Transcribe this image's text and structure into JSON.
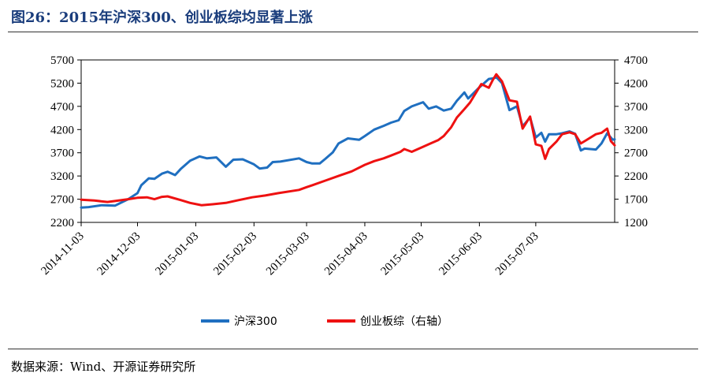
{
  "title": "图26：2015年沪深300、创业板综均显著上涨",
  "source": "数据来源：Wind、开源证券研究所",
  "chart_data": {
    "type": "line",
    "x_ticks": [
      "2014-11-03",
      "2014-12-03",
      "2015-01-03",
      "2015-02-03",
      "2015-03-03",
      "2015-04-03",
      "2015-05-03",
      "2015-06-03",
      "2015-07-03"
    ],
    "x_range": [
      "2014-11-03",
      "2015-08-14"
    ],
    "y_left": {
      "ticks": [
        "2200",
        "2700",
        "3200",
        "3700",
        "4200",
        "4700",
        "5200",
        "5700"
      ],
      "range": [
        2200,
        5700
      ]
    },
    "y_right": {
      "ticks": [
        "1200",
        "1700",
        "2200",
        "2700",
        "3200",
        "3700",
        "4200",
        "4700"
      ],
      "range": [
        1200,
        4700
      ]
    },
    "grid": false,
    "legend_position": "bottom",
    "series": [
      {
        "name": "沪深300",
        "axis": "left",
        "color": "#1f6fc0",
        "points": [
          [
            "2014-11-03",
            2520
          ],
          [
            "2014-11-07",
            2530
          ],
          [
            "2014-11-14",
            2570
          ],
          [
            "2014-11-21",
            2560
          ],
          [
            "2014-11-28",
            2700
          ],
          [
            "2014-12-03",
            2830
          ],
          [
            "2014-12-05",
            3000
          ],
          [
            "2014-12-09",
            3150
          ],
          [
            "2014-12-12",
            3140
          ],
          [
            "2014-12-16",
            3250
          ],
          [
            "2014-12-19",
            3290
          ],
          [
            "2014-12-23",
            3220
          ],
          [
            "2014-12-26",
            3350
          ],
          [
            "2014-12-31",
            3530
          ],
          [
            "2015-01-05",
            3620
          ],
          [
            "2015-01-09",
            3580
          ],
          [
            "2015-01-14",
            3600
          ],
          [
            "2015-01-19",
            3400
          ],
          [
            "2015-01-23",
            3550
          ],
          [
            "2015-01-28",
            3560
          ],
          [
            "2015-02-03",
            3450
          ],
          [
            "2015-02-06",
            3360
          ],
          [
            "2015-02-10",
            3380
          ],
          [
            "2015-02-13",
            3500
          ],
          [
            "2015-02-17",
            3510
          ],
          [
            "2015-02-27",
            3580
          ],
          [
            "2015-03-03",
            3500
          ],
          [
            "2015-03-06",
            3470
          ],
          [
            "2015-03-10",
            3470
          ],
          [
            "2015-03-13",
            3570
          ],
          [
            "2015-03-17",
            3710
          ],
          [
            "2015-03-20",
            3900
          ],
          [
            "2015-03-25",
            4010
          ],
          [
            "2015-03-31",
            3980
          ],
          [
            "2015-04-03",
            4060
          ],
          [
            "2015-04-08",
            4200
          ],
          [
            "2015-04-13",
            4280
          ],
          [
            "2015-04-17",
            4350
          ],
          [
            "2015-04-21",
            4400
          ],
          [
            "2015-04-24",
            4600
          ],
          [
            "2015-04-28",
            4700
          ],
          [
            "2015-05-04",
            4790
          ],
          [
            "2015-05-07",
            4650
          ],
          [
            "2015-05-11",
            4700
          ],
          [
            "2015-05-15",
            4610
          ],
          [
            "2015-05-19",
            4650
          ],
          [
            "2015-05-22",
            4820
          ],
          [
            "2015-05-26",
            5000
          ],
          [
            "2015-05-28",
            4870
          ],
          [
            "2015-06-03",
            5110
          ],
          [
            "2015-06-05",
            5180
          ],
          [
            "2015-06-08",
            5290
          ],
          [
            "2015-06-10",
            5300
          ],
          [
            "2015-06-12",
            5330
          ],
          [
            "2015-06-15",
            5200
          ],
          [
            "2015-06-19",
            4620
          ],
          [
            "2015-06-23",
            4700
          ],
          [
            "2015-06-26",
            4270
          ],
          [
            "2015-06-30",
            4460
          ],
          [
            "2015-07-03",
            4030
          ],
          [
            "2015-07-06",
            4130
          ],
          [
            "2015-07-08",
            3940
          ],
          [
            "2015-07-10",
            4100
          ],
          [
            "2015-07-14",
            4100
          ],
          [
            "2015-07-17",
            4120
          ],
          [
            "2015-07-21",
            4160
          ],
          [
            "2015-07-24",
            4110
          ],
          [
            "2015-07-27",
            3750
          ],
          [
            "2015-07-29",
            3790
          ],
          [
            "2015-08-04",
            3770
          ],
          [
            "2015-08-07",
            3900
          ],
          [
            "2015-08-10",
            4120
          ],
          [
            "2015-08-13",
            3980
          ],
          [
            "2015-08-14",
            3990
          ]
        ]
      },
      {
        "name": "创业板综（右轴）",
        "axis": "right",
        "color": "#ee1111",
        "points": [
          [
            "2014-11-03",
            1690
          ],
          [
            "2014-11-10",
            1670
          ],
          [
            "2014-11-17",
            1640
          ],
          [
            "2014-11-21",
            1660
          ],
          [
            "2014-11-28",
            1700
          ],
          [
            "2014-12-03",
            1730
          ],
          [
            "2014-12-08",
            1740
          ],
          [
            "2014-12-12",
            1700
          ],
          [
            "2014-12-16",
            1750
          ],
          [
            "2014-12-19",
            1760
          ],
          [
            "2014-12-26",
            1680
          ],
          [
            "2014-12-31",
            1620
          ],
          [
            "2015-01-06",
            1570
          ],
          [
            "2015-01-12",
            1590
          ],
          [
            "2015-01-19",
            1620
          ],
          [
            "2015-01-26",
            1680
          ],
          [
            "2015-02-02",
            1740
          ],
          [
            "2015-02-09",
            1780
          ],
          [
            "2015-02-16",
            1830
          ],
          [
            "2015-02-27",
            1900
          ],
          [
            "2015-03-03",
            1960
          ],
          [
            "2015-03-06",
            2000
          ],
          [
            "2015-03-13",
            2100
          ],
          [
            "2015-03-20",
            2200
          ],
          [
            "2015-03-27",
            2300
          ],
          [
            "2015-04-03",
            2440
          ],
          [
            "2015-04-08",
            2520
          ],
          [
            "2015-04-13",
            2580
          ],
          [
            "2015-04-17",
            2640
          ],
          [
            "2015-04-22",
            2720
          ],
          [
            "2015-04-24",
            2780
          ],
          [
            "2015-04-28",
            2720
          ],
          [
            "2015-05-04",
            2830
          ],
          [
            "2015-05-08",
            2900
          ],
          [
            "2015-05-12",
            2970
          ],
          [
            "2015-05-15",
            3060
          ],
          [
            "2015-05-19",
            3250
          ],
          [
            "2015-05-22",
            3460
          ],
          [
            "2015-05-26",
            3640
          ],
          [
            "2015-05-29",
            3780
          ],
          [
            "2015-06-02",
            4050
          ],
          [
            "2015-06-04",
            4180
          ],
          [
            "2015-06-08",
            4100
          ],
          [
            "2015-06-10",
            4260
          ],
          [
            "2015-06-12",
            4390
          ],
          [
            "2015-06-15",
            4240
          ],
          [
            "2015-06-19",
            3830
          ],
          [
            "2015-06-23",
            3800
          ],
          [
            "2015-06-26",
            3220
          ],
          [
            "2015-06-30",
            3480
          ],
          [
            "2015-07-03",
            2880
          ],
          [
            "2015-07-06",
            2850
          ],
          [
            "2015-07-08",
            2570
          ],
          [
            "2015-07-10",
            2780
          ],
          [
            "2015-07-14",
            2940
          ],
          [
            "2015-07-17",
            3100
          ],
          [
            "2015-07-21",
            3140
          ],
          [
            "2015-07-24",
            3100
          ],
          [
            "2015-07-27",
            2900
          ],
          [
            "2015-07-29",
            2950
          ],
          [
            "2015-08-04",
            3100
          ],
          [
            "2015-08-07",
            3130
          ],
          [
            "2015-08-10",
            3220
          ],
          [
            "2015-08-12",
            2950
          ],
          [
            "2015-08-14",
            2860
          ]
        ]
      }
    ]
  }
}
